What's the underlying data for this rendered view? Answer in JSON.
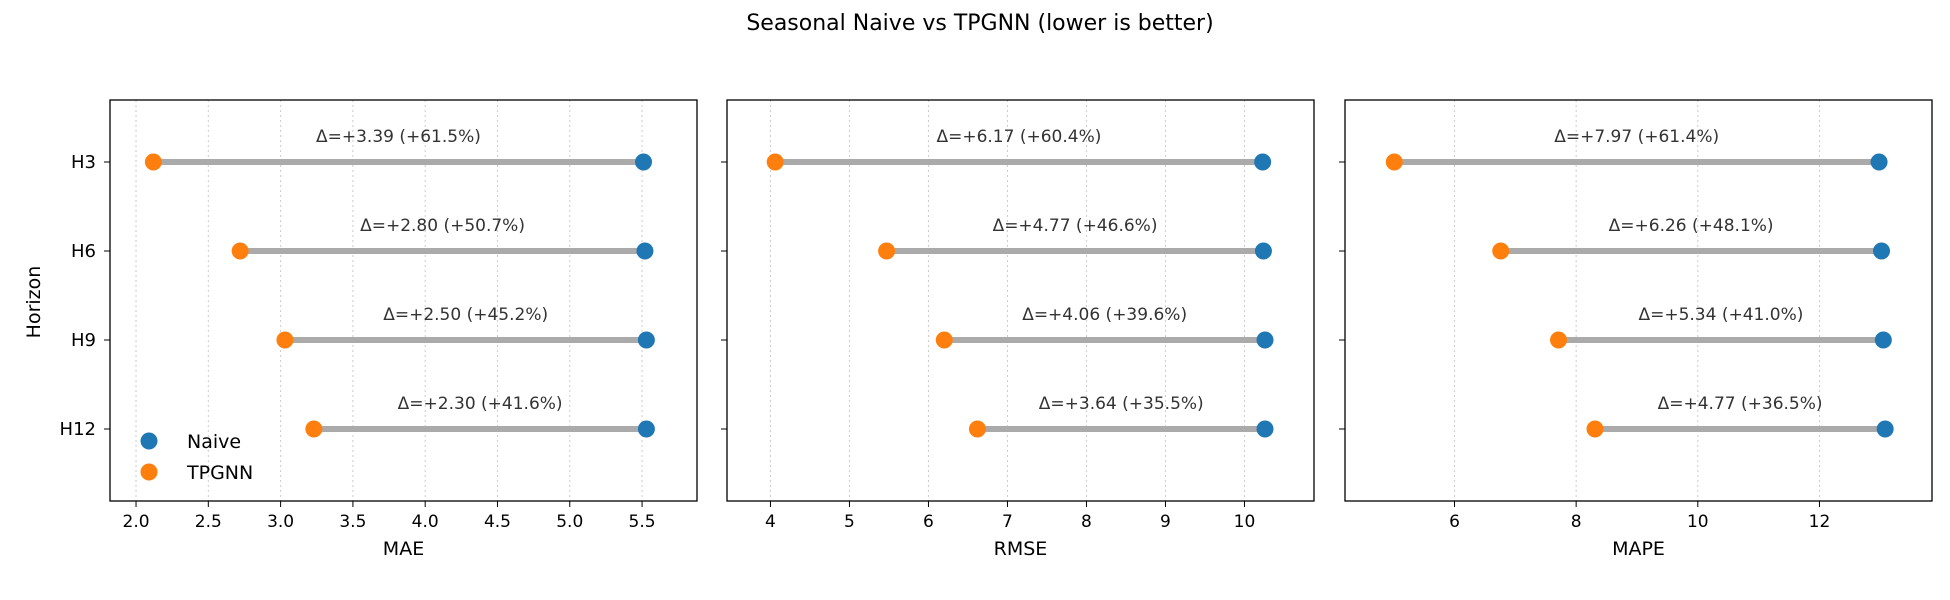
{
  "title": "Seasonal Naive vs TPGNN (lower is better)",
  "ylabel": "Horizon",
  "categories": [
    "H3",
    "H6",
    "H9",
    "H12"
  ],
  "series_names": [
    "Naive",
    "TPGNN"
  ],
  "colors": {
    "Naive": "#1f77b4",
    "TPGNN": "#ff7f0e",
    "connector": "#aaaaaa",
    "grid": "#cccccc"
  },
  "legend": {
    "placement": "lower-left",
    "entries": [
      "Naive",
      "TPGNN"
    ]
  },
  "chart_data": [
    {
      "type": "dumbbell",
      "xlabel": "MAE",
      "xlim": [
        1.82,
        5.88
      ],
      "xticks": [
        2.0,
        2.5,
        3.0,
        3.5,
        4.0,
        4.5,
        5.0,
        5.5
      ],
      "xtick_labels": [
        "2.0",
        "2.5",
        "3.0",
        "3.5",
        "4.0",
        "4.5",
        "5.0",
        "5.5"
      ],
      "grid": "vertical dotted",
      "categories": [
        "H3",
        "H6",
        "H9",
        "H12"
      ],
      "series": [
        {
          "name": "Naive",
          "values": [
            5.51,
            5.52,
            5.53,
            5.53
          ]
        },
        {
          "name": "TPGNN",
          "values": [
            2.12,
            2.72,
            3.03,
            3.23
          ]
        }
      ],
      "annotations": [
        "Δ=+3.39 (+61.5%)",
        "Δ=+2.80 (+50.7%)",
        "Δ=+2.50 (+45.2%)",
        "Δ=+2.30 (+41.6%)"
      ]
    },
    {
      "type": "dumbbell",
      "xlabel": "RMSE",
      "xlim": [
        3.45,
        10.88
      ],
      "xticks": [
        4,
        5,
        6,
        7,
        8,
        9,
        10
      ],
      "xtick_labels": [
        "4",
        "5",
        "6",
        "7",
        "8",
        "9",
        "10"
      ],
      "grid": "vertical dotted",
      "categories": [
        "H3",
        "H6",
        "H9",
        "H12"
      ],
      "series": [
        {
          "name": "Naive",
          "values": [
            10.23,
            10.24,
            10.26,
            10.26
          ]
        },
        {
          "name": "TPGNN",
          "values": [
            4.06,
            5.47,
            6.2,
            6.62
          ]
        }
      ],
      "annotations": [
        "Δ=+6.17 (+60.4%)",
        "Δ=+4.77 (+46.6%)",
        "Δ=+4.06 (+39.6%)",
        "Δ=+3.64 (+35.5%)"
      ]
    },
    {
      "type": "dumbbell",
      "xlabel": "MAPE",
      "xlim": [
        4.2,
        13.85
      ],
      "xticks": [
        6,
        8,
        10,
        12
      ],
      "xtick_labels": [
        "6",
        "8",
        "10",
        "12"
      ],
      "grid": "vertical dotted",
      "categories": [
        "H3",
        "H6",
        "H9",
        "H12"
      ],
      "series": [
        {
          "name": "Naive",
          "values": [
            12.98,
            13.02,
            13.05,
            13.08
          ]
        },
        {
          "name": "TPGNN",
          "values": [
            5.01,
            6.76,
            7.71,
            8.31
          ]
        }
      ],
      "annotations": [
        "Δ=+7.97 (+61.4%)",
        "Δ=+6.26 (+48.1%)",
        "Δ=+5.34 (+41.0%)",
        "Δ=+4.77 (+36.5%)"
      ]
    }
  ]
}
